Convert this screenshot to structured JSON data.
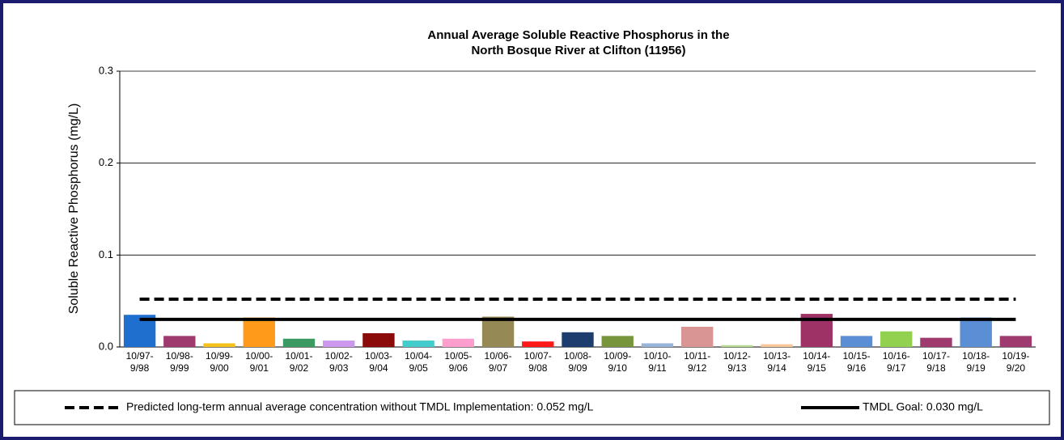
{
  "chart_data": {
    "type": "bar",
    "title": [
      "Annual Average Soluble Reactive Phosphorus in the",
      "North Bosque River at Clifton (11956)"
    ],
    "y_label": "Soluble Reactive Phosphorus (mg/L)",
    "categories": [
      "10/97-9/98",
      "10/98-9/99",
      "10/99-9/00",
      "10/00-9/01",
      "10/01-9/02",
      "10/02-9/03",
      "10/03-9/04",
      "10/04-9/05",
      "10/05-9/06",
      "10/06-9/07",
      "10/07-9/08",
      "10/08-9/09",
      "10/09-9/10",
      "10/10-9/11",
      "10/11-9/12",
      "10/12-9/13",
      "10/13-9/14",
      "10/14-9/15",
      "10/15-9/16",
      "10/16-9/17",
      "10/17-9/18",
      "10/18-9/19",
      "10/19-9/20"
    ],
    "values": [
      0.035,
      0.012,
      0.004,
      0.032,
      0.009,
      0.007,
      0.015,
      0.007,
      0.009,
      0.033,
      0.006,
      0.016,
      0.012,
      0.004,
      0.022,
      0.002,
      0.003,
      0.036,
      0.012,
      0.017,
      0.01,
      0.032,
      0.012
    ],
    "colors": [
      "#1f6fce",
      "#9e3a6e",
      "#f5c21b",
      "#ff9a1a",
      "#3a9a62",
      "#cc99ee",
      "#8b0a0a",
      "#44cccc",
      "#ff9ecc",
      "#958a55",
      "#ff1a1a",
      "#1c3d6e",
      "#77963c",
      "#99b4d9",
      "#d99594",
      "#b5d98f",
      "#f7c79a",
      "#9e3266",
      "#5a8fd6",
      "#92d050",
      "#9e3a6e",
      "#5a8fd6",
      "#9e3a6e"
    ],
    "ylim": [
      0,
      0.3
    ],
    "yticks": [
      {
        "value": 0,
        "label": "0.0"
      },
      0.1,
      0.2,
      0.3
    ],
    "grid": true,
    "reference_lines": [
      {
        "name": "Predicted long-term annual average concentration without TMDL Implementation: 0.052 mg/L",
        "value": 0.052,
        "style": "dashed"
      },
      {
        "name": "TMDL Goal: 0.030 mg/L",
        "value": 0.03,
        "style": "solid"
      }
    ]
  }
}
